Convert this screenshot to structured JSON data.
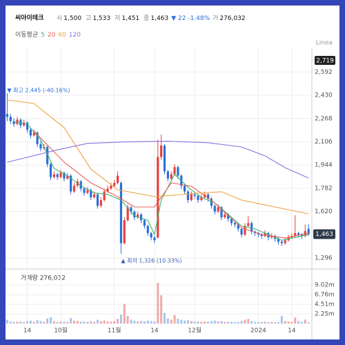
{
  "chart_data": {
    "type": "candlestick",
    "title": "씨아이테크",
    "header": [
      {
        "label": "시",
        "value": "1,500"
      },
      {
        "label": "고",
        "value": "1,533"
      },
      {
        "label": "저",
        "value": "1,451"
      },
      {
        "label": "종",
        "value": "1,463"
      }
    ],
    "change": "▼ 22 -1.48%",
    "volume_header": {
      "label": "거",
      "value": "276,032"
    },
    "ma_label": "이동평균",
    "scale_label": "Linea",
    "volume_title": "거래량 276,032",
    "last_price": {
      "value": 1463,
      "label": "1,463"
    },
    "annotations": [
      {
        "text": "▼ 최고 2,445 (-40.16%)",
        "index": 0,
        "value": 2445
      },
      {
        "text": "▲ 최저 1,326 (10.33%)",
        "index": 34,
        "value": 1326
      }
    ],
    "ylim": [
      1229,
      2719
    ],
    "yticks": [
      {
        "value": 2719,
        "label": "2,719"
      },
      {
        "value": 2592,
        "label": "2,592"
      },
      {
        "value": 2430,
        "label": "2,430"
      },
      {
        "value": 2268,
        "label": "2,268"
      },
      {
        "value": 2106,
        "label": "2,106"
      },
      {
        "value": 1944,
        "label": "1,944"
      },
      {
        "value": 1782,
        "label": "1,782"
      },
      {
        "value": 1620,
        "label": "1,620"
      },
      {
        "value": 1296,
        "label": "1,296"
      }
    ],
    "volume_ylim": [
      0,
      11600000
    ],
    "volume_yticks": [
      {
        "value": 9020000,
        "label": "9.02m"
      },
      {
        "value": 6760000,
        "label": "6.76m"
      },
      {
        "value": 4510000,
        "label": "4.51m"
      },
      {
        "value": 2250000,
        "label": "2.25m"
      }
    ],
    "xlim": [
      -0.5,
      91
    ],
    "xticks": [
      {
        "value": 6,
        "label": "14"
      },
      {
        "value": 16,
        "label": "10월"
      },
      {
        "value": 32,
        "label": "11월"
      },
      {
        "value": 44,
        "label": "14"
      },
      {
        "value": 56,
        "label": "12월"
      },
      {
        "value": 75,
        "label": "2024"
      },
      {
        "value": 85,
        "label": "14"
      }
    ],
    "grid": true,
    "up_color": "#e8403c",
    "down_color": "#2a6fd8",
    "candles": [
      [
        2300,
        2445,
        2250,
        2280
      ],
      [
        2280,
        2300,
        2230,
        2250
      ],
      [
        2250,
        2270,
        2210,
        2230
      ],
      [
        2230,
        2280,
        2220,
        2260
      ],
      [
        2260,
        2270,
        2200,
        2220
      ],
      [
        2220,
        2260,
        2210,
        2240
      ],
      [
        2240,
        2250,
        2170,
        2190
      ],
      [
        2190,
        2200,
        2130,
        2150
      ],
      [
        2150,
        2190,
        2140,
        2170
      ],
      [
        2170,
        2180,
        2070,
        2090
      ],
      [
        2090,
        2110,
        2040,
        2060
      ],
      [
        2060,
        2090,
        2050,
        2070
      ],
      [
        2070,
        2080,
        1930,
        1950
      ],
      [
        1950,
        1960,
        1840,
        1860
      ],
      [
        1860,
        1900,
        1850,
        1880
      ],
      [
        1880,
        1890,
        1840,
        1860
      ],
      [
        1860,
        1910,
        1850,
        1890
      ],
      [
        1890,
        1900,
        1830,
        1850
      ],
      [
        1850,
        1890,
        1840,
        1870
      ],
      [
        1870,
        1880,
        1740,
        1760
      ],
      [
        1760,
        1820,
        1750,
        1800
      ],
      [
        1800,
        1850,
        1790,
        1830
      ],
      [
        1830,
        1840,
        1760,
        1780
      ],
      [
        1780,
        1790,
        1730,
        1750
      ],
      [
        1750,
        1790,
        1740,
        1770
      ],
      [
        1770,
        1780,
        1700,
        1720
      ],
      [
        1720,
        1760,
        1710,
        1740
      ],
      [
        1740,
        1750,
        1640,
        1660
      ],
      [
        1660,
        1720,
        1650,
        1700
      ],
      [
        1700,
        1780,
        1690,
        1760
      ],
      [
        1760,
        1800,
        1750,
        1780
      ],
      [
        1780,
        1820,
        1770,
        1800
      ],
      [
        1800,
        1840,
        1790,
        1820
      ],
      [
        1820,
        1900,
        1810,
        1870
      ],
      [
        1820,
        1830,
        1326,
        1400
      ],
      [
        1400,
        1580,
        1390,
        1560
      ],
      [
        1560,
        1670,
        1550,
        1650
      ],
      [
        1650,
        1660,
        1600,
        1620
      ],
      [
        1620,
        1630,
        1560,
        1580
      ],
      [
        1580,
        1620,
        1570,
        1600
      ],
      [
        1600,
        1610,
        1540,
        1560
      ],
      [
        1560,
        1570,
        1500,
        1520
      ],
      [
        1520,
        1530,
        1450,
        1470
      ],
      [
        1470,
        1480,
        1420,
        1440
      ],
      [
        1440,
        1450,
        1400,
        1420
      ],
      [
        1440,
        2120,
        1430,
        2000
      ],
      [
        2000,
        2157,
        1980,
        2080
      ],
      [
        2080,
        2090,
        1880,
        1900
      ],
      [
        1900,
        1910,
        1830,
        1850
      ],
      [
        1850,
        1900,
        1840,
        1880
      ],
      [
        1880,
        1950,
        1870,
        1930
      ],
      [
        1930,
        1940,
        1850,
        1870
      ],
      [
        1870,
        1880,
        1780,
        1800
      ],
      [
        1800,
        1810,
        1740,
        1760
      ],
      [
        1760,
        1770,
        1680,
        1700
      ],
      [
        1700,
        1760,
        1690,
        1740
      ],
      [
        1740,
        1750,
        1710,
        1730
      ],
      [
        1730,
        1740,
        1680,
        1700
      ],
      [
        1700,
        1740,
        1690,
        1720
      ],
      [
        1720,
        1760,
        1710,
        1740
      ],
      [
        1740,
        1750,
        1690,
        1710
      ],
      [
        1710,
        1720,
        1640,
        1660
      ],
      [
        1660,
        1670,
        1600,
        1620
      ],
      [
        1620,
        1670,
        1610,
        1650
      ],
      [
        1650,
        1660,
        1560,
        1580
      ],
      [
        1580,
        1620,
        1570,
        1600
      ],
      [
        1600,
        1610,
        1550,
        1570
      ],
      [
        1570,
        1580,
        1520,
        1540
      ],
      [
        1540,
        1550,
        1510,
        1530
      ],
      [
        1530,
        1540,
        1480,
        1500
      ],
      [
        1500,
        1510,
        1440,
        1460
      ],
      [
        1460,
        1540,
        1450,
        1520
      ],
      [
        1520,
        1590,
        1510,
        1540
      ],
      [
        1540,
        1550,
        1460,
        1480
      ],
      [
        1480,
        1490,
        1450,
        1470
      ],
      [
        1470,
        1480,
        1440,
        1460
      ],
      [
        1460,
        1470,
        1430,
        1450
      ],
      [
        1450,
        1490,
        1440,
        1470
      ],
      [
        1470,
        1480,
        1420,
        1440
      ],
      [
        1440,
        1470,
        1430,
        1450
      ],
      [
        1450,
        1460,
        1410,
        1430
      ],
      [
        1430,
        1440,
        1390,
        1410
      ],
      [
        1410,
        1420,
        1380,
        1400
      ],
      [
        1400,
        1440,
        1390,
        1420
      ],
      [
        1420,
        1460,
        1410,
        1440
      ],
      [
        1440,
        1470,
        1430,
        1450
      ],
      [
        1450,
        1595,
        1440,
        1470
      ],
      [
        1470,
        1480,
        1440,
        1460
      ],
      [
        1460,
        1470,
        1430,
        1450
      ],
      [
        1450,
        1530,
        1440,
        1485
      ],
      [
        1500,
        1533,
        1451,
        1463
      ]
    ],
    "volumes": [
      900000,
      500000,
      400000,
      450000,
      500000,
      350000,
      600000,
      700000,
      400000,
      800000,
      600000,
      400000,
      1200000,
      1500000,
      600000,
      400000,
      500000,
      450000,
      400000,
      1300000,
      700000,
      600000,
      500000,
      500000,
      400000,
      600000,
      400000,
      900000,
      600000,
      700000,
      500000,
      450000,
      600000,
      1100000,
      2100000,
      4600000,
      1800000,
      900000,
      700000,
      500000,
      600000,
      500000,
      700000,
      600000,
      500000,
      9500000,
      6600000,
      2500000,
      1200000,
      900000,
      2000000,
      1100000,
      900000,
      700000,
      800000,
      600000,
      500000,
      500000,
      450000,
      500000,
      450000,
      600000,
      700000,
      500000,
      600000,
      400000,
      450000,
      400000,
      350000,
      400000,
      600000,
      900000,
      1100000,
      600000,
      400000,
      350000,
      400000,
      450000,
      350000,
      400000,
      350000,
      400000,
      1800000,
      600000,
      500000,
      450000,
      1400000,
      600000,
      400000,
      900000,
      276032
    ],
    "ma": [
      {
        "name": "5",
        "color": "#3cb371",
        "x": [
          2,
          6,
          10,
          14,
          18,
          22,
          26,
          30,
          34,
          38,
          42,
          44,
          46,
          50,
          54,
          58,
          62,
          66,
          70,
          74,
          78,
          82,
          86,
          90
        ],
        "values": [
          2245,
          2230,
          2120,
          1920,
          1870,
          1800,
          1750,
          1740,
          1700,
          1590,
          1560,
          1460,
          1700,
          1880,
          1790,
          1720,
          1680,
          1600,
          1520,
          1500,
          1460,
          1420,
          1440,
          1460
        ]
      },
      {
        "name": "20",
        "color": "#e8605a",
        "x": [
          8,
          17,
          25,
          33,
          38,
          44,
          49,
          55,
          61,
          70,
          76,
          83,
          90
        ],
        "values": [
          2181,
          1964,
          1820,
          1724,
          1652,
          1652,
          1820,
          1796,
          1700,
          1508,
          1460,
          1436,
          1470
        ]
      },
      {
        "name": "60",
        "color": "#f0a040",
        "x": [
          0,
          8,
          17,
          25,
          33,
          44,
          57,
          64,
          70,
          80,
          90
        ],
        "values": [
          2397,
          2373,
          2205,
          1916,
          1772,
          1724,
          1748,
          1758,
          1700,
          1652,
          1604
        ]
      },
      {
        "name": "120",
        "color": "#8a70e0",
        "x": [
          0,
          15,
          24,
          35,
          48,
          60,
          70,
          77,
          83,
          90
        ],
        "values": [
          1964,
          2050,
          2095,
          2105,
          2110,
          2100,
          2070,
          2008,
          1926,
          1854
        ]
      }
    ]
  }
}
